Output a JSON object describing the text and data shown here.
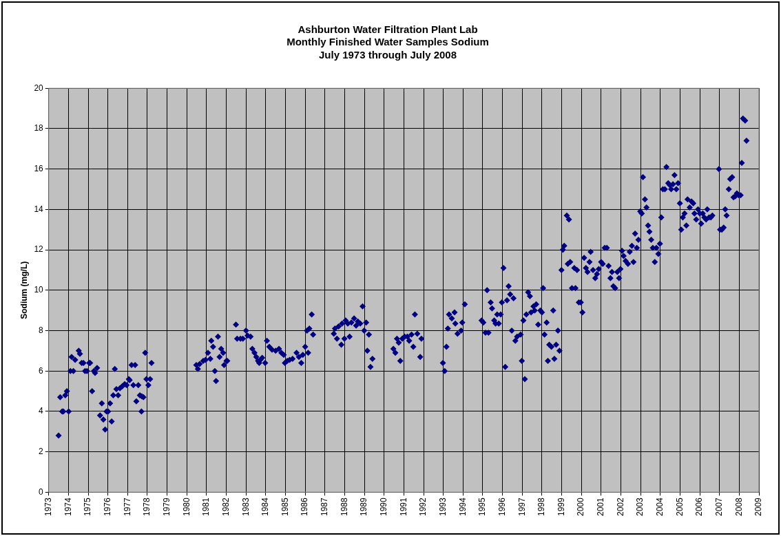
{
  "chart_data": {
    "type": "scatter",
    "title": "Ashburton Water Filtration Plant Lab\nMonthly Finished Water Samples Sodium\nJuly 1973 through July 2008",
    "ylabel": "Sodium (mg/L)",
    "xlim": [
      1973,
      2009
    ],
    "xticks": [
      1973,
      1974,
      1975,
      1976,
      1977,
      1978,
      1979,
      1980,
      1981,
      1982,
      1983,
      1984,
      1985,
      1986,
      1987,
      1988,
      1989,
      1990,
      1991,
      1992,
      1993,
      1994,
      1995,
      1996,
      1997,
      1998,
      1999,
      2000,
      2001,
      2002,
      2003,
      2004,
      2005,
      2006,
      2007,
      2008,
      2009
    ],
    "ylim": [
      0,
      20
    ],
    "yticks": [
      0,
      2,
      4,
      6,
      8,
      10,
      12,
      14,
      16,
      18,
      20
    ],
    "grid": true,
    "legend": false,
    "marker": "diamond",
    "series": [
      {
        "color": "#000080",
        "x": [
          1973.5,
          1973.58,
          1973.68,
          1973.74,
          1973.84,
          1973.92,
          1974.01,
          1974.1,
          1974.25,
          1974.16,
          1974.34,
          1974.52,
          1974.58,
          1974.67,
          1974.76,
          1974.84,
          1974.94,
          1975.05,
          1975.1,
          1975.2,
          1975.29,
          1975.35,
          1975.45,
          1975.69,
          1975.6,
          1975.77,
          1975.86,
          1975.93,
          1976.01,
          1976.11,
          1976.19,
          1976.35,
          1976.27,
          1976.43,
          1976.52,
          1976.61,
          1976.73,
          1976.85,
          1976.95,
          1977.06,
          1977.1,
          1977.2,
          1977.38,
          1977.29,
          1977.54,
          1977.62,
          1977.44,
          1977.72,
          1977.8,
          1977.7,
          1977.89,
          1977.95,
          1978.14,
          1978.05,
          1978.21,
          1980.48,
          1980.56,
          1980.65,
          1980.83,
          1980.95,
          1981.07,
          1981.19,
          1981.24,
          1981.33,
          1981.42,
          1981.48,
          1981.58,
          1981.66,
          1981.74,
          1981.84,
          1981.89,
          1982.01,
          1982.05,
          1982.49,
          1982.55,
          1982.72,
          1982.84,
          1983.0,
          1983.08,
          1983.23,
          1983.32,
          1983.43,
          1983.52,
          1983.61,
          1983.73,
          1983.82,
          1983.67,
          1983.97,
          1984.06,
          1984.18,
          1984.32,
          1984.5,
          1984.67,
          1984.79,
          1984.91,
          1984.97,
          1985.09,
          1985.21,
          1985.36,
          1985.56,
          1985.68,
          1985.8,
          1985.88,
          1986.0,
          1986.15,
          1986.09,
          1986.21,
          1986.4,
          1986.33,
          1987.45,
          1987.51,
          1987.61,
          1987.69,
          1987.83,
          1987.87,
          1987.99,
          1988.05,
          1988.16,
          1988.25,
          1988.34,
          1988.48,
          1988.58,
          1988.67,
          1988.79,
          1988.91,
          1988.99,
          1989.09,
          1989.23,
          1989.15,
          1989.41,
          1989.31,
          1990.47,
          1990.57,
          1990.65,
          1990.74,
          1990.82,
          1990.92,
          1991.04,
          1991.18,
          1991.27,
          1991.39,
          1991.48,
          1991.56,
          1991.68,
          1991.83,
          1991.89,
          1992.98,
          1993.07,
          1993.16,
          1993.23,
          1993.29,
          1993.43,
          1993.57,
          1993.61,
          1993.72,
          1993.9,
          1993.96,
          1994.09,
          1994.94,
          1995.03,
          1995.14,
          1995.29,
          1995.22,
          1995.4,
          1995.47,
          1995.58,
          1995.65,
          1995.73,
          1995.81,
          1995.91,
          1995.97,
          1996.05,
          1996.14,
          1996.23,
          1996.31,
          1996.39,
          1996.56,
          1996.47,
          1996.65,
          1996.74,
          1996.92,
          1996.98,
          1997.06,
          1997.13,
          1997.21,
          1997.3,
          1997.39,
          1997.45,
          1997.57,
          1997.71,
          1997.63,
          1997.81,
          1997.92,
          1998.0,
          1998.06,
          1998.13,
          1998.24,
          1998.3,
          1998.37,
          1998.48,
          1998.57,
          1998.63,
          1998.72,
          1998.81,
          1998.89,
          1998.99,
          1999.06,
          1999.13,
          1999.31,
          1999.43,
          1999.37,
          1999.26,
          1999.52,
          1999.7,
          1999.64,
          1999.78,
          1999.87,
          1999.97,
          2000.05,
          2000.14,
          2000.23,
          2000.31,
          2000.41,
          2000.47,
          2000.59,
          2000.7,
          2000.79,
          2000.88,
          2001.0,
          2001.08,
          2001.18,
          2001.29,
          2001.38,
          2001.47,
          2001.55,
          2001.62,
          2001.71,
          2001.82,
          2001.91,
          2001.98,
          2002.06,
          2002.14,
          2002.24,
          2002.36,
          2002.45,
          2002.56,
          2002.64,
          2002.72,
          2002.81,
          2002.89,
          2002.98,
          2003.06,
          2003.12,
          2003.22,
          2003.3,
          2003.38,
          2003.45,
          2003.54,
          2003.62,
          2003.72,
          2003.8,
          2003.9,
          2003.98,
          2004.05,
          2004.13,
          2004.23,
          2004.31,
          2004.4,
          2004.49,
          2004.55,
          2004.64,
          2004.72,
          2004.81,
          2004.9,
          2004.99,
          2005.06,
          2005.14,
          2005.23,
          2005.32,
          2005.38,
          2005.49,
          2005.58,
          2005.67,
          2005.73,
          2005.82,
          2005.91,
          2006.0,
          2006.07,
          2006.15,
          2006.23,
          2006.32,
          2006.38,
          2006.47,
          2006.56,
          2006.64,
          2006.97,
          2007.03,
          2007.12,
          2007.21,
          2007.29,
          2007.36,
          2007.47,
          2007.54,
          2007.64,
          2007.71,
          2007.8,
          2007.88,
          2007.97,
          2008.07,
          2008.13,
          2008.19,
          2008.3,
          2008.37
        ],
        "values": [
          2.8,
          4.7,
          4.0,
          4.0,
          4.8,
          5.0,
          4.0,
          6.0,
          6.0,
          6.7,
          6.55,
          7.0,
          6.85,
          6.4,
          6.4,
          6.0,
          6.0,
          6.4,
          6.4,
          5.0,
          6.0,
          5.9,
          6.15,
          4.4,
          3.8,
          3.6,
          3.1,
          4.0,
          4.0,
          4.4,
          3.5,
          6.1,
          4.8,
          5.1,
          4.8,
          5.15,
          5.25,
          5.35,
          5.3,
          5.6,
          5.55,
          6.3,
          6.3,
          5.3,
          5.3,
          4.8,
          4.5,
          4.75,
          4.7,
          4.0,
          6.9,
          5.6,
          5.6,
          5.3,
          6.4,
          6.3,
          6.1,
          6.35,
          6.5,
          6.55,
          6.9,
          6.6,
          7.5,
          7.2,
          6.0,
          5.5,
          7.7,
          6.7,
          7.1,
          6.9,
          6.3,
          6.5,
          6.5,
          8.3,
          7.6,
          7.6,
          7.6,
          8.0,
          7.75,
          7.7,
          7.1,
          6.9,
          6.7,
          6.5,
          6.55,
          6.65,
          6.4,
          6.4,
          7.5,
          7.2,
          7.05,
          7.0,
          7.1,
          6.9,
          6.8,
          6.4,
          6.5,
          6.55,
          6.6,
          6.9,
          6.7,
          6.4,
          6.8,
          7.2,
          6.9,
          8.0,
          8.1,
          7.8,
          8.8,
          7.85,
          8.1,
          7.6,
          8.2,
          7.3,
          8.35,
          7.6,
          8.5,
          8.35,
          7.7,
          8.4,
          8.6,
          8.25,
          8.45,
          8.35,
          9.2,
          8.0,
          8.4,
          7.8,
          7.0,
          6.6,
          6.2,
          7.1,
          6.9,
          7.6,
          7.4,
          6.5,
          7.6,
          7.7,
          7.7,
          7.5,
          7.8,
          7.2,
          8.8,
          7.85,
          6.7,
          7.6,
          6.4,
          6.0,
          7.2,
          8.1,
          8.8,
          8.6,
          8.9,
          8.35,
          7.85,
          8.0,
          8.4,
          9.3,
          8.5,
          8.4,
          7.9,
          7.9,
          10.0,
          9.4,
          9.1,
          8.5,
          8.35,
          8.8,
          8.35,
          8.8,
          9.4,
          11.1,
          6.2,
          9.5,
          10.2,
          9.8,
          9.6,
          8.0,
          7.5,
          7.7,
          7.8,
          6.5,
          8.5,
          5.6,
          8.8,
          9.9,
          9.7,
          8.9,
          9.2,
          9.3,
          9.0,
          8.3,
          9.0,
          8.9,
          10.1,
          7.8,
          8.4,
          6.5,
          7.3,
          7.2,
          9.0,
          6.6,
          7.3,
          8.0,
          7.0,
          11.0,
          12.0,
          12.2,
          11.3,
          11.4,
          13.5,
          13.7,
          10.1,
          10.1,
          11.1,
          11.0,
          9.4,
          9.4,
          8.9,
          11.6,
          11.1,
          10.9,
          11.4,
          11.9,
          11.0,
          10.6,
          10.8,
          11.05,
          11.4,
          11.3,
          12.1,
          12.1,
          11.2,
          10.6,
          10.9,
          10.2,
          10.1,
          10.9,
          10.6,
          11.05,
          11.95,
          11.7,
          11.45,
          11.3,
          11.9,
          12.2,
          11.4,
          12.8,
          12.1,
          12.5,
          13.9,
          13.8,
          15.6,
          14.5,
          14.1,
          13.2,
          12.9,
          12.5,
          12.1,
          11.4,
          12.1,
          11.8,
          12.3,
          13.6,
          15.0,
          15.0,
          16.1,
          15.3,
          15.2,
          15.0,
          15.25,
          15.7,
          15.0,
          15.3,
          14.3,
          13.0,
          13.6,
          13.8,
          13.2,
          14.5,
          14.1,
          14.4,
          14.3,
          13.8,
          13.5,
          14.0,
          13.8,
          13.3,
          13.8,
          13.6,
          13.5,
          14.0,
          13.6,
          13.6,
          13.7,
          16.0,
          13.0,
          13.0,
          13.1,
          14.0,
          13.7,
          15.0,
          15.5,
          15.6,
          14.6,
          14.65,
          14.8,
          14.7,
          14.7,
          16.3,
          18.5,
          18.4,
          17.4
        ]
      }
    ]
  }
}
